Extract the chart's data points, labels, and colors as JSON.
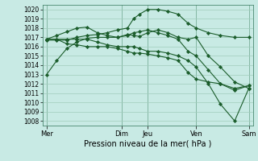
{
  "background_color": "#c8eae4",
  "grid_color": "#a0ccbb",
  "line_color": "#1a5c2a",
  "marker": "D",
  "marker_size": 2.2,
  "ylim": [
    1007.5,
    1020.5
  ],
  "yticks": [
    1008,
    1009,
    1010,
    1011,
    1012,
    1013,
    1014,
    1015,
    1016,
    1017,
    1018,
    1019,
    1020
  ],
  "xlabel": "Pression niveau de la mer( hPa )",
  "xtick_labels": [
    "Mer",
    "Dim",
    "Jeu",
    "Ven",
    "Sam"
  ],
  "xtick_positions": [
    0,
    37,
    50,
    74,
    100
  ],
  "vline_positions": [
    0,
    37,
    50,
    74,
    100
  ],
  "series": [
    {
      "x": [
        0,
        5,
        10,
        15,
        20,
        25,
        30,
        35,
        40,
        43,
        46,
        50,
        55,
        60,
        65,
        70,
        74,
        80,
        86,
        93,
        100
      ],
      "y": [
        1013.0,
        1014.5,
        1015.8,
        1016.5,
        1016.9,
        1017.0,
        1017.0,
        1017.0,
        1017.3,
        1017.2,
        1017.1,
        1017.5,
        1017.8,
        1017.5,
        1017.0,
        1016.8,
        1017.0,
        1015.0,
        1013.8,
        1012.2,
        1011.5
      ]
    },
    {
      "x": [
        0,
        5,
        10,
        15,
        20,
        25,
        30,
        35,
        40,
        43,
        46,
        50,
        55,
        60,
        65,
        70,
        74,
        80,
        86,
        93,
        100
      ],
      "y": [
        1016.7,
        1016.7,
        1016.7,
        1017.0,
        1017.2,
        1017.3,
        1017.5,
        1017.8,
        1018.0,
        1019.0,
        1019.5,
        1020.0,
        1020.0,
        1019.8,
        1019.5,
        1018.5,
        1018.0,
        1017.5,
        1017.2,
        1017.0,
        1017.0
      ]
    },
    {
      "x": [
        0,
        5,
        10,
        15,
        20,
        25,
        30,
        35,
        40,
        43,
        46,
        50,
        55,
        60,
        65,
        70,
        74,
        80,
        86,
        93,
        100
      ],
      "y": [
        1016.8,
        1017.2,
        1017.6,
        1018.0,
        1018.1,
        1017.5,
        1017.2,
        1017.0,
        1017.2,
        1017.5,
        1017.6,
        1017.8,
        1017.5,
        1017.2,
        1016.8,
        1015.5,
        1015.0,
        1013.5,
        1012.0,
        1011.5,
        1011.8
      ]
    },
    {
      "x": [
        0,
        5,
        10,
        15,
        20,
        25,
        30,
        35,
        40,
        43,
        46,
        50,
        55,
        60,
        65,
        70,
        74,
        80,
        86,
        93,
        100
      ],
      "y": [
        1016.8,
        1016.8,
        1016.8,
        1016.8,
        1016.8,
        1016.5,
        1016.2,
        1016.0,
        1016.0,
        1016.0,
        1015.8,
        1015.5,
        1015.5,
        1015.3,
        1015.0,
        1014.5,
        1013.8,
        1012.0,
        1009.8,
        1008.0,
        1011.5
      ]
    },
    {
      "x": [
        0,
        5,
        10,
        15,
        20,
        25,
        30,
        35,
        40,
        43,
        46,
        50,
        55,
        60,
        65,
        70,
        74,
        80,
        86,
        93,
        100
      ],
      "y": [
        1016.8,
        1016.8,
        1016.3,
        1016.2,
        1016.0,
        1016.0,
        1016.0,
        1015.8,
        1015.5,
        1015.3,
        1015.3,
        1015.2,
        1015.0,
        1014.8,
        1014.5,
        1013.2,
        1012.5,
        1012.2,
        1012.0,
        1011.3,
        1011.8
      ]
    }
  ]
}
